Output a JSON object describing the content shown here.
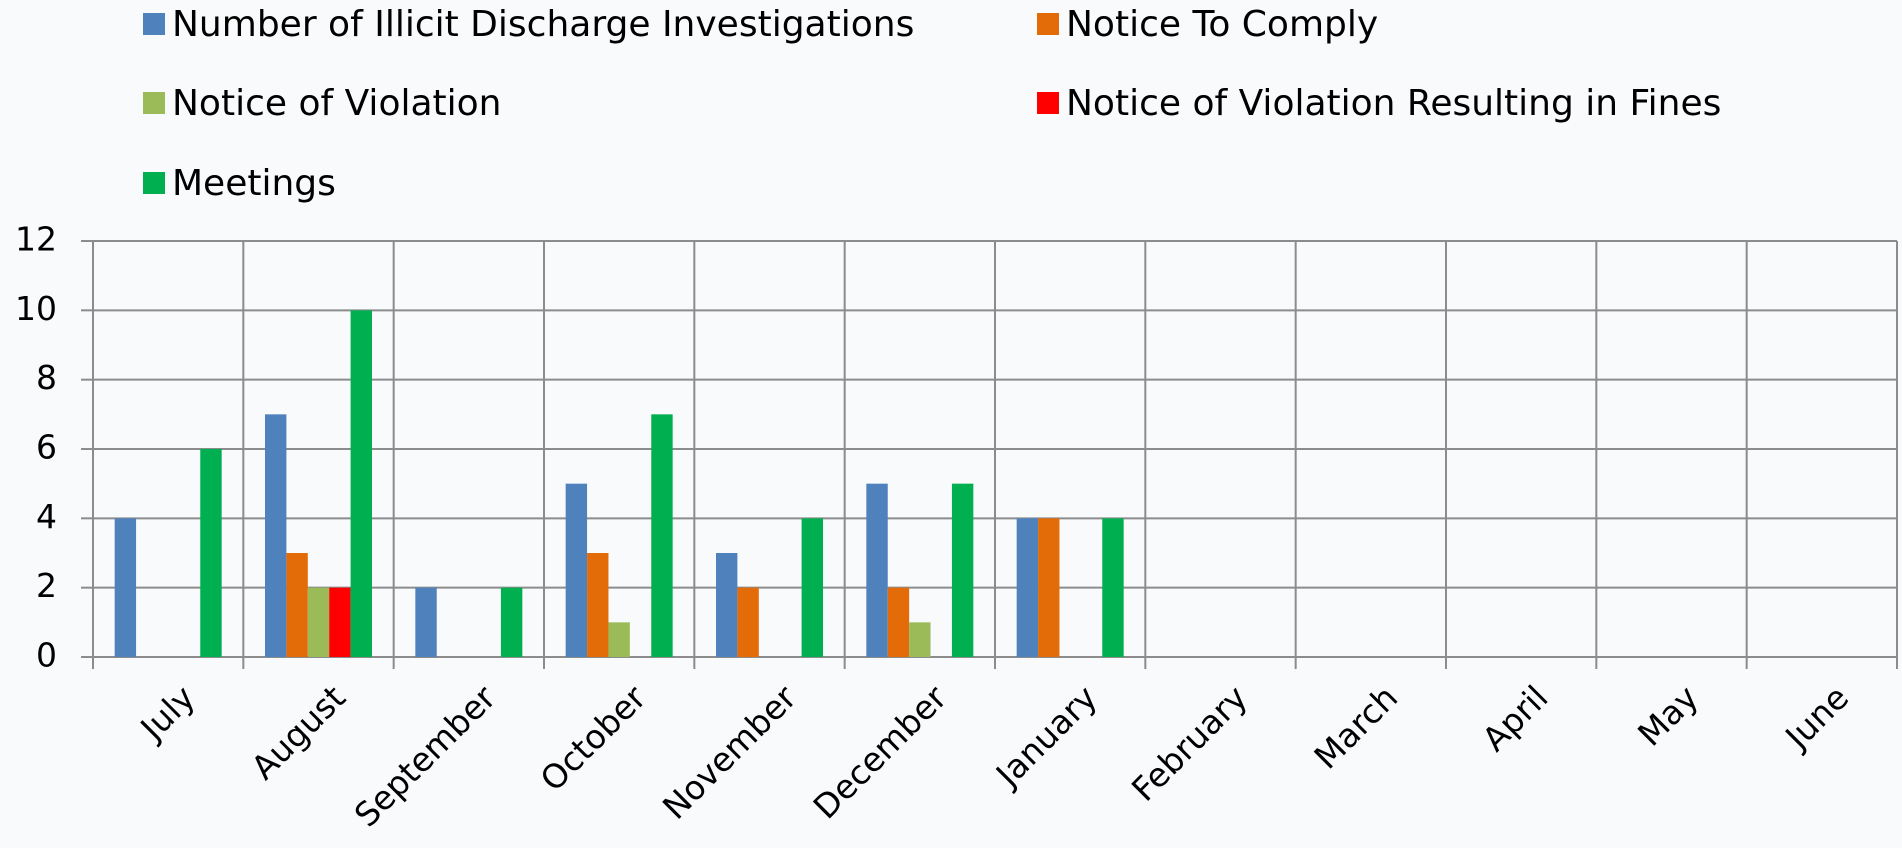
{
  "chart_data": {
    "type": "bar",
    "categories": [
      "July",
      "August",
      "September",
      "October",
      "November",
      "December",
      "January",
      "February",
      "March",
      "April",
      "May",
      "June"
    ],
    "series": [
      {
        "name": "Number of Illicit Discharge Investigations",
        "color": "#4f81bd",
        "values": [
          4,
          7,
          2,
          5,
          3,
          5,
          4,
          null,
          null,
          null,
          null,
          null
        ]
      },
      {
        "name": "Notice To Comply",
        "color": "#e36c09",
        "values": [
          0,
          3,
          0,
          3,
          2,
          2,
          4,
          null,
          null,
          null,
          null,
          null
        ]
      },
      {
        "name": "Notice of Violation",
        "color": "#9bbb59",
        "values": [
          0,
          2,
          0,
          1,
          0,
          1,
          0,
          null,
          null,
          null,
          null,
          null
        ]
      },
      {
        "name": "Notice of Violation Resulting in Fines",
        "color": "#ff0000",
        "values": [
          0,
          2,
          0,
          0,
          0,
          0,
          0,
          null,
          null,
          null,
          null,
          null
        ]
      },
      {
        "name": "Meetings",
        "color": "#00b050",
        "values": [
          6,
          10,
          2,
          7,
          4,
          5,
          4,
          null,
          null,
          null,
          null,
          null
        ]
      }
    ],
    "ylim": [
      0,
      12
    ],
    "yticks": [
      0,
      2,
      4,
      6,
      8,
      10,
      12
    ],
    "grid": true,
    "legend": "top"
  }
}
